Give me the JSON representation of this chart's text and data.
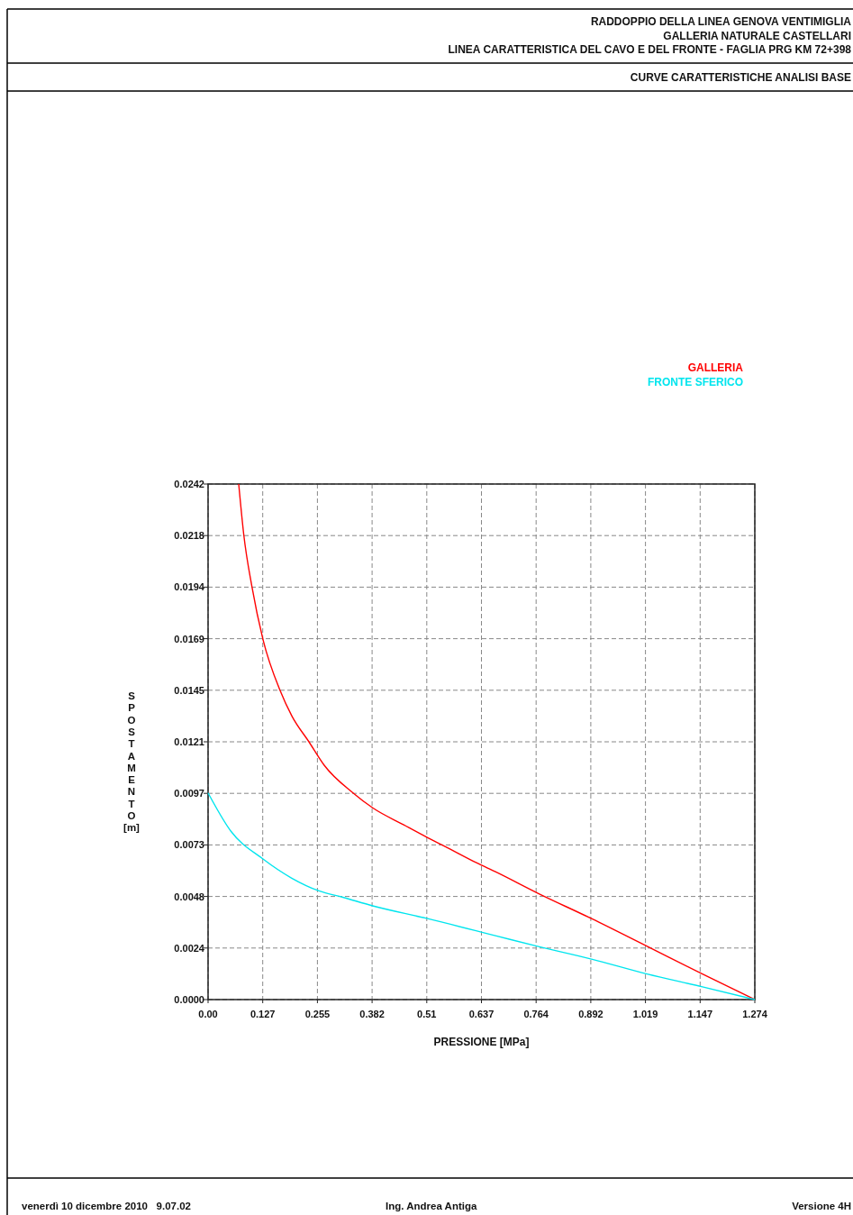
{
  "chart_data": {
    "type": "line",
    "title": "RADDOPPIO DELLA LINEA GENOVA VENTIMIGLIA\nGALLERIA NATURALE CASTELLARI\nLINEA CARATTERISTICA DEL CAVO E DEL FRONTE - FAGLIA PRG KM 72+398",
    "subtitle": "CURVE CARATTERISTICHE ANALISI BASE",
    "xlabel": "PRESSIONE [MPa]",
    "ylabel": "SPOSTAMENTO [m]",
    "annotations": [
      "venerdì 10 dicembre 2010   9.07.02",
      "Ing. Andrea Antiga",
      "Versione 4H"
    ],
    "series": [
      {
        "name": "GALLERIA",
        "color": "#ff0000",
        "x": [
          0.0714,
          0.0833,
          0.102,
          0.128,
          0.168,
          0.1955,
          0.235,
          0.2706,
          0.3378,
          0.3835,
          0.456,
          0.5115,
          0.551,
          0.6276,
          0.6696,
          0.7676,
          0.8935,
          1.023,
          1.152,
          1.274
        ],
        "values": [
          0.0242,
          0.0218,
          0.0194,
          0.0169,
          0.0145,
          0.0133,
          0.0121,
          0.011,
          0.0097,
          0.009,
          0.0082,
          0.0076,
          0.0072,
          0.0064,
          0.006,
          0.005,
          0.0038,
          0.0025,
          0.0012,
          0
        ]
      },
      {
        "name": "FRONTE SFERICO",
        "color": "#00e5ee",
        "x": [
          0,
          0.0533,
          0.128,
          0.195,
          0.2586,
          0.314,
          0.3835,
          0.5115,
          0.6696,
          0.7676,
          0.8935,
          1.023,
          1.152,
          1.274
        ],
        "values": [
          0.0097,
          0.0079,
          0.0066,
          0.0057,
          0.0051,
          0.0048,
          0.0044,
          0.0038,
          0.003,
          0.0025,
          0.0019,
          0.0012,
          0.0006,
          0
        ]
      }
    ],
    "xlim": [
      0,
      1.274
    ],
    "ylim": [
      0,
      0.0242
    ],
    "xticks": [
      {
        "value": 0,
        "label": "0.00"
      },
      {
        "value": 0.1274,
        "label": "0.127"
      },
      {
        "value": 0.2548,
        "label": "0.255"
      },
      {
        "value": 0.3822,
        "label": "0.382"
      },
      {
        "value": 0.5096,
        "label": "0.51"
      },
      {
        "value": 0.637,
        "label": "0.637"
      },
      {
        "value": 0.7644,
        "label": "0.764"
      },
      {
        "value": 0.8918,
        "label": "0.892"
      },
      {
        "value": 1.0192,
        "label": "1.019"
      },
      {
        "value": 1.1466,
        "label": "1.147"
      },
      {
        "value": 1.274,
        "label": "1.274"
      }
    ],
    "yticks": [
      {
        "value": 0,
        "label": "0.0000"
      },
      {
        "value": 0.00242,
        "label": "0.0024"
      },
      {
        "value": 0.00484,
        "label": "0.0048"
      },
      {
        "value": 0.00726,
        "label": "0.0073"
      },
      {
        "value": 0.00968,
        "label": "0.0097"
      },
      {
        "value": 0.0121,
        "label": "0.0121"
      },
      {
        "value": 0.01452,
        "label": "0.0145"
      },
      {
        "value": 0.01694,
        "label": "0.0169"
      },
      {
        "value": 0.01936,
        "label": "0.0194"
      },
      {
        "value": 0.02178,
        "label": "0.0218"
      },
      {
        "value": 0.0242,
        "label": "0.0242"
      }
    ],
    "grid": true,
    "legend": "top right",
    "line_style": "solid",
    "marker": "none"
  }
}
